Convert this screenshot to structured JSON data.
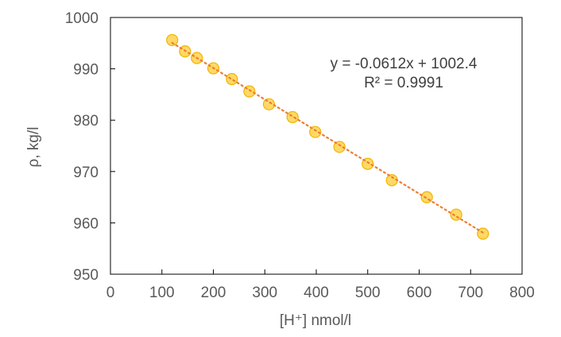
{
  "chart_data": {
    "type": "scatter",
    "title": "",
    "xlabel": "[H⁺] nmol/l",
    "ylabel": "ρ, kg/l",
    "xlim": [
      0,
      800
    ],
    "ylim": [
      950,
      1000
    ],
    "x_ticks": [
      "0",
      "100",
      "200",
      "300",
      "400",
      "500",
      "600",
      "700",
      "800"
    ],
    "y_ticks": [
      "950",
      "960",
      "970",
      "980",
      "990",
      "1000"
    ],
    "grid": false,
    "legend": "none",
    "series": [
      {
        "x": [
          120,
          145,
          168,
          200,
          236,
          270,
          308,
          354,
          398,
          445,
          500,
          547,
          615,
          672,
          724
        ],
        "y": [
          995.6,
          993.4,
          992.1,
          990.1,
          988.0,
          985.6,
          983.1,
          980.6,
          977.7,
          974.8,
          971.5,
          968.3,
          965.0,
          961.6,
          957.9
        ],
        "marker_fill": "#ffd966",
        "marker_stroke": "#f0b400"
      }
    ],
    "trendline": {
      "type": "linear",
      "slope": -0.0612,
      "intercept": 1002.4,
      "color": "#ed7d31",
      "style": "dotted",
      "equation": "y = -0.0612x + 1002.4",
      "r_squared": "R² = 0.9991"
    }
  }
}
